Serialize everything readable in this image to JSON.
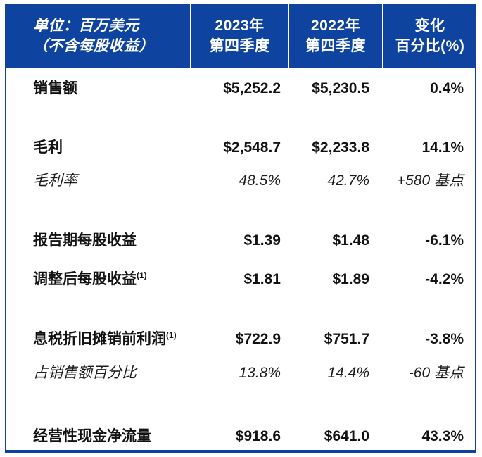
{
  "colors": {
    "header_blue": "#0f43a0",
    "border_blue": "#0f43a0",
    "header_text": "#ffffff",
    "body_text": "#121212"
  },
  "table": {
    "header": {
      "unit_line1": "单位：百万美元",
      "unit_line2": "（不含每股收益）",
      "col2023_line1": "2023年",
      "col2023_line2": "第四季度",
      "col2022_line1": "2022年",
      "col2022_line2": "第四季度",
      "change_line1": "变化",
      "change_line2": "百分比(%)"
    },
    "rows": [
      {
        "label": "销售额",
        "sup": "",
        "q4_2023": "$5,252.2",
        "q4_2022": "$5,230.5",
        "change": "0.4%",
        "italic": false
      },
      {
        "label": "毛利",
        "sup": "",
        "q4_2023": "$2,548.7",
        "q4_2022": "$2,233.8",
        "change": "14.1%",
        "italic": false
      },
      {
        "label": "毛利率",
        "sup": "",
        "q4_2023": "48.5%",
        "q4_2022": "42.7%",
        "change": "+580 基点",
        "italic": true
      },
      {
        "label": "报告期每股收益",
        "sup": "",
        "q4_2023": "$1.39",
        "q4_2022": "$1.48",
        "change": "-6.1%",
        "italic": false
      },
      {
        "label": "调整后每股收益",
        "sup": "(1)",
        "q4_2023": "$1.81",
        "q4_2022": "$1.89",
        "change": "-4.2%",
        "italic": false
      },
      {
        "label": "息税折旧摊销前利润",
        "sup": "(1)",
        "q4_2023": "$722.9",
        "q4_2022": "$751.7",
        "change": "-3.8%",
        "italic": false
      },
      {
        "label": "占销售额百分比",
        "sup": "",
        "q4_2023": "13.8%",
        "q4_2022": "14.4%",
        "change": "-60 基点",
        "italic": true
      },
      {
        "label": "经营性现金净流量",
        "sup": "",
        "q4_2023": "$918.6",
        "q4_2022": "$641.0",
        "change": "43.3%",
        "italic": false
      }
    ]
  }
}
